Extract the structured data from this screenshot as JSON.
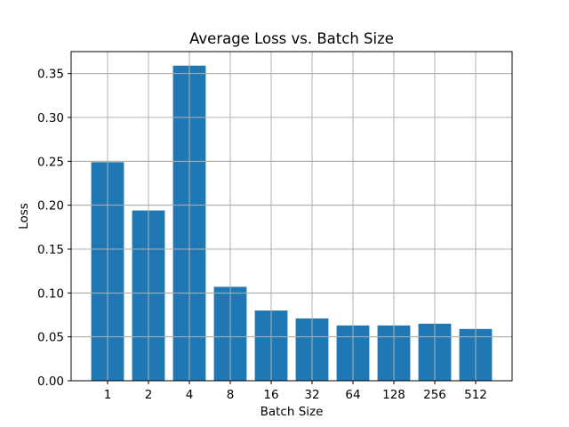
{
  "chart_data": {
    "type": "bar",
    "title": "Average Loss vs. Batch Size",
    "xlabel": "Batch Size",
    "ylabel": "Loss",
    "categories": [
      "1",
      "2",
      "4",
      "8",
      "16",
      "32",
      "64",
      "128",
      "256",
      "512"
    ],
    "values": [
      0.249,
      0.194,
      0.359,
      0.107,
      0.08,
      0.071,
      0.063,
      0.063,
      0.065,
      0.059
    ],
    "ylim": [
      0,
      0.375
    ],
    "yticks": [
      "0.00",
      "0.05",
      "0.10",
      "0.15",
      "0.20",
      "0.25",
      "0.30",
      "0.35"
    ],
    "grid": true,
    "bar_color": "#1f77b4",
    "grid_color": "#b0b0b0"
  }
}
